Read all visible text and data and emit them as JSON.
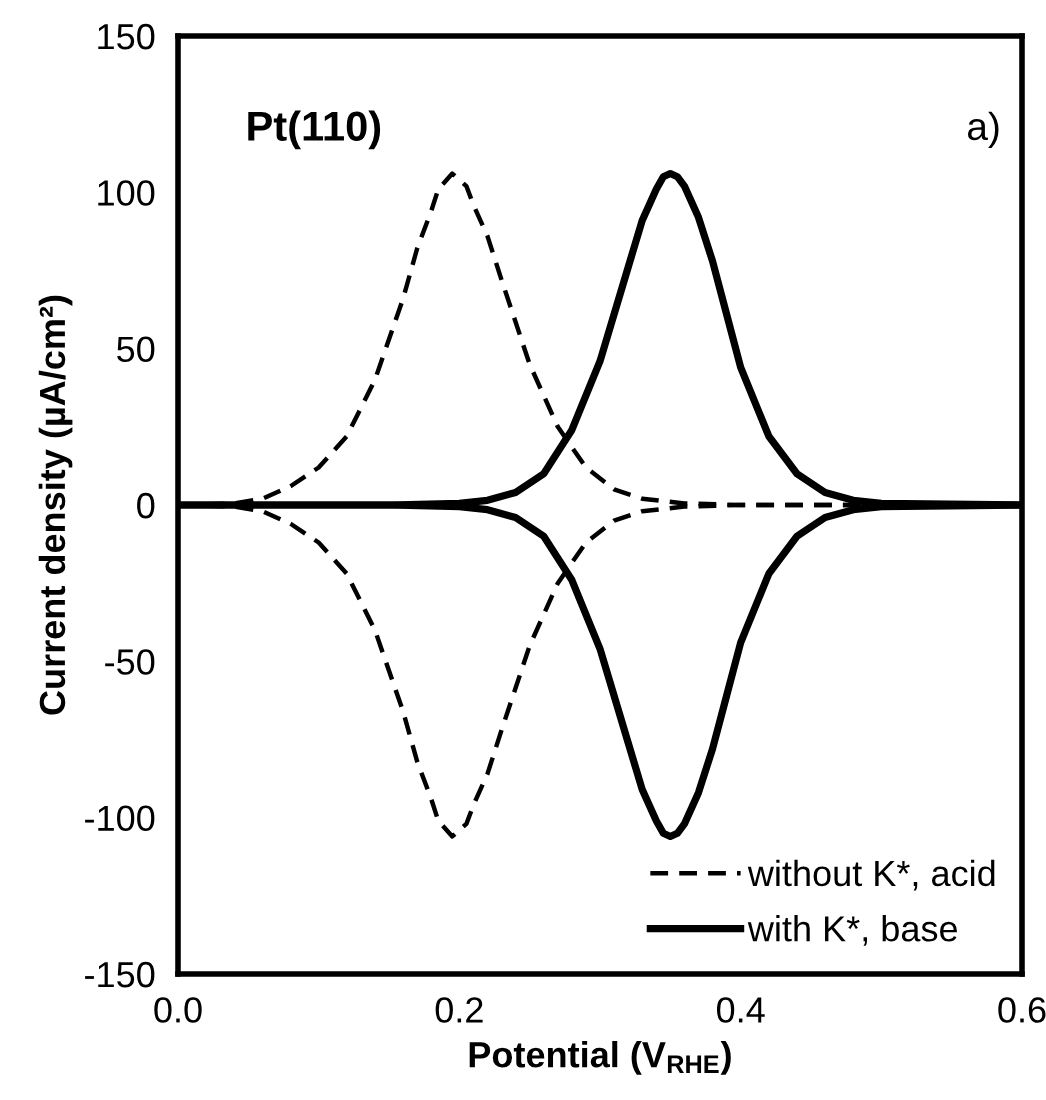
{
  "chart_data": {
    "type": "line",
    "xlabel": "Potential (V$_{RHE}$)",
    "ylabel": "Current density (µA/cm²)",
    "annotations": [
      "Pt(110)",
      "a)"
    ],
    "xlim": [
      0,
      0.6
    ],
    "ylim": [
      -150,
      150
    ],
    "xticks": [
      {
        "value": 0,
        "label": "0.0"
      },
      {
        "value": 0.2,
        "label": "0.2"
      },
      {
        "value": 0.4,
        "label": "0.4"
      },
      {
        "value": 0.6,
        "label": "0.6"
      }
    ],
    "yticks": [
      -150,
      -100,
      -50,
      0,
      50,
      100,
      150
    ],
    "grid": false,
    "legend": "bottom right",
    "marker": "none",
    "series": [
      {
        "name": "without K*, acid",
        "color": "#000000",
        "line_style": "dashed",
        "x": [
          0.0,
          0.04,
          0.06,
          0.08,
          0.1,
          0.12,
          0.14,
          0.16,
          0.17,
          0.18,
          0.185,
          0.195,
          0.205,
          0.21,
          0.22,
          0.23,
          0.25,
          0.27,
          0.29,
          0.31,
          0.33,
          0.36,
          0.4,
          0.6
        ],
        "values": [
          0,
          0.5,
          2,
          6,
          12,
          22,
          40,
          66,
          82,
          94,
          101,
          106,
          102,
          96,
          86,
          72,
          45,
          25,
          12,
          5,
          2,
          0.5,
          0,
          0
        ]
      },
      {
        "color": "#000000",
        "line_style": "dashed",
        "x": [
          0.0,
          0.04,
          0.06,
          0.08,
          0.1,
          0.12,
          0.14,
          0.16,
          0.17,
          0.18,
          0.185,
          0.195,
          0.205,
          0.21,
          0.22,
          0.23,
          0.25,
          0.27,
          0.29,
          0.31,
          0.33,
          0.36,
          0.4,
          0.6
        ],
        "values": [
          0,
          -0.5,
          -2,
          -6,
          -12,
          -22,
          -40,
          -66,
          -82,
          -94,
          -101,
          -106,
          -102,
          -96,
          -86,
          -72,
          -45,
          -25,
          -12,
          -5,
          -2,
          -0.5,
          0,
          0
        ]
      },
      {
        "name": "with K*, base",
        "color": "#000000",
        "line_style": "solid",
        "x": [
          0.0,
          0.15,
          0.2,
          0.22,
          0.24,
          0.26,
          0.28,
          0.3,
          0.32,
          0.33,
          0.34,
          0.345,
          0.35,
          0.355,
          0.36,
          0.37,
          0.38,
          0.39,
          0.4,
          0.42,
          0.44,
          0.46,
          0.48,
          0.5,
          0.6
        ],
        "values": [
          0,
          0,
          0.5,
          1.5,
          4,
          10,
          24,
          46,
          76,
          91,
          101,
          105,
          106,
          105,
          102,
          92,
          78,
          61,
          44,
          22,
          10,
          4,
          1.5,
          0.5,
          0
        ]
      },
      {
        "color": "#000000",
        "line_style": "solid",
        "x": [
          0.0,
          0.15,
          0.2,
          0.22,
          0.24,
          0.26,
          0.28,
          0.3,
          0.32,
          0.33,
          0.34,
          0.345,
          0.35,
          0.355,
          0.36,
          0.37,
          0.38,
          0.39,
          0.4,
          0.42,
          0.44,
          0.46,
          0.48,
          0.5,
          0.6
        ],
        "values": [
          0,
          0,
          -0.5,
          -1.5,
          -4,
          -10,
          -24,
          -46,
          -76,
          -91,
          -101,
          -105,
          -106,
          -105,
          -102,
          -92,
          -78,
          -61,
          -44,
          -22,
          -10,
          -4,
          -1.5,
          -0.5,
          0
        ]
      }
    ]
  }
}
